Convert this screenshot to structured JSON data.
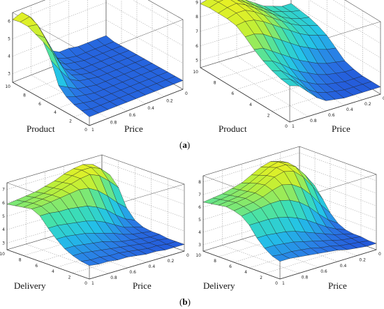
{
  "captions": {
    "a": "a",
    "b": "b"
  },
  "chart_data": [
    {
      "type": "surface",
      "panel": "a-left",
      "xlabel": "Price",
      "ylabel": "Product",
      "x_ticks": [
        "0",
        "0.2",
        "0.4",
        "0.6",
        "0.8",
        "1"
      ],
      "y_ticks": [
        "0",
        "2",
        "4",
        "6",
        "8",
        "10"
      ],
      "z_ticks": [
        "3",
        "4",
        "5",
        "6"
      ],
      "xlim": [
        0,
        1
      ],
      "ylim": [
        0,
        10
      ],
      "zlim": [
        2.5,
        6.5
      ],
      "grid": true,
      "colormap": [
        "#1f3fd0",
        "#2a7ae6",
        "#23c3e8",
        "#3fe0b0",
        "#b9ef3a",
        "#f4f01e"
      ],
      "x": [
        0,
        0.1,
        0.2,
        0.3,
        0.4,
        0.5,
        0.6,
        0.7,
        0.8,
        0.9,
        1
      ],
      "y": [
        0,
        1,
        2,
        3,
        4,
        5,
        6,
        7,
        8,
        9,
        10
      ],
      "z": [
        [
          3.0,
          3.0,
          3.0,
          3.0,
          3.0,
          3.0,
          3.0,
          3.0,
          3.0,
          3.0,
          3.0
        ],
        [
          3.0,
          3.0,
          3.0,
          3.0,
          3.0,
          3.0,
          3.0,
          3.0,
          3.0,
          3.0,
          3.1
        ],
        [
          3.0,
          3.0,
          3.0,
          3.0,
          3.0,
          3.0,
          3.0,
          3.0,
          3.0,
          3.1,
          3.2
        ],
        [
          3.0,
          3.0,
          3.0,
          3.0,
          3.0,
          3.0,
          3.0,
          3.0,
          3.1,
          3.2,
          3.4
        ],
        [
          3.0,
          3.0,
          3.0,
          3.0,
          3.0,
          3.0,
          3.0,
          3.1,
          3.2,
          3.5,
          3.8
        ],
        [
          3.0,
          3.0,
          3.0,
          3.0,
          3.0,
          3.0,
          3.1,
          3.2,
          3.5,
          4.2,
          5.0
        ],
        [
          3.0,
          3.0,
          3.0,
          3.0,
          3.0,
          3.0,
          3.1,
          3.3,
          4.0,
          5.0,
          5.8
        ],
        [
          3.0,
          3.0,
          3.0,
          3.0,
          3.0,
          3.0,
          3.1,
          3.4,
          4.5,
          5.6,
          6.0
        ],
        [
          3.0,
          3.0,
          3.0,
          3.0,
          3.0,
          3.1,
          3.2,
          3.6,
          5.0,
          6.1,
          6.2
        ],
        [
          3.0,
          3.0,
          3.0,
          3.0,
          3.0,
          3.1,
          3.3,
          4.0,
          5.5,
          6.3,
          6.2
        ],
        [
          3.1,
          3.1,
          3.1,
          3.1,
          3.2,
          3.2,
          3.5,
          4.5,
          5.8,
          6.3,
          6.1
        ]
      ]
    },
    {
      "type": "surface",
      "panel": "a-right",
      "xlabel": "Price",
      "ylabel": "Product",
      "x_ticks": [
        "0",
        "0.2",
        "0.4",
        "0.6",
        "0.8",
        "1"
      ],
      "y_ticks": [
        "0",
        "2",
        "4",
        "6",
        "8",
        "10"
      ],
      "z_ticks": [
        "5",
        "6",
        "7",
        "8",
        "9"
      ],
      "xlim": [
        0,
        1
      ],
      "ylim": [
        0,
        10
      ],
      "zlim": [
        4.5,
        9.5
      ],
      "grid": true,
      "colormap": [
        "#1f3fd0",
        "#2a7ae6",
        "#23c3e8",
        "#3fe0b0",
        "#b9ef3a",
        "#f4f01e"
      ],
      "x": [
        0,
        0.1,
        0.2,
        0.3,
        0.4,
        0.5,
        0.6,
        0.7,
        0.8,
        0.9,
        1
      ],
      "y": [
        0,
        1,
        2,
        3,
        4,
        5,
        6,
        7,
        8,
        9,
        10
      ],
      "z": [
        [
          5.0,
          5.0,
          5.0,
          5.0,
          5.0,
          5.1,
          5.2,
          5.6,
          6.2,
          6.8,
          7.0
        ],
        [
          5.0,
          5.0,
          5.0,
          5.0,
          5.1,
          5.2,
          5.4,
          5.8,
          6.4,
          6.9,
          7.1
        ],
        [
          5.0,
          5.0,
          5.0,
          5.1,
          5.2,
          5.4,
          5.7,
          6.1,
          6.6,
          7.1,
          7.3
        ],
        [
          5.1,
          5.1,
          5.2,
          5.3,
          5.5,
          5.8,
          6.1,
          6.5,
          7.0,
          7.4,
          7.6
        ],
        [
          5.3,
          5.4,
          5.5,
          5.7,
          6.0,
          6.3,
          6.7,
          7.1,
          7.5,
          7.9,
          8.0
        ],
        [
          5.8,
          5.9,
          6.1,
          6.4,
          6.7,
          7.1,
          7.5,
          7.9,
          8.3,
          8.5,
          8.5
        ],
        [
          6.3,
          6.5,
          6.7,
          7.0,
          7.4,
          7.8,
          8.2,
          8.6,
          8.9,
          9.0,
          8.9
        ],
        [
          6.6,
          6.8,
          7.0,
          7.3,
          7.7,
          8.1,
          8.5,
          8.9,
          9.2,
          9.2,
          9.0
        ],
        [
          6.8,
          6.9,
          7.1,
          7.4,
          7.8,
          8.2,
          8.6,
          9.0,
          9.3,
          9.2,
          9.0
        ],
        [
          6.9,
          7.0,
          7.2,
          7.4,
          7.8,
          8.2,
          8.6,
          9.0,
          9.3,
          9.2,
          9.0
        ],
        [
          7.0,
          7.0,
          7.2,
          7.4,
          7.8,
          8.2,
          8.6,
          9.0,
          9.2,
          9.1,
          8.9
        ]
      ]
    },
    {
      "type": "surface",
      "panel": "b-left",
      "xlabel": "Price",
      "ylabel": "Delivery",
      "x_ticks": [
        "0",
        "0.2",
        "0.4",
        "0.6",
        "0.8",
        "1"
      ],
      "y_ticks": [
        "0",
        "2",
        "4",
        "6",
        "8",
        "10"
      ],
      "z_ticks": [
        "3",
        "4",
        "5",
        "6",
        "7"
      ],
      "xlim": [
        0,
        1
      ],
      "ylim": [
        0,
        10
      ],
      "zlim": [
        2.5,
        7.5
      ],
      "grid": true,
      "colormap": [
        "#1f3fd0",
        "#2a7ae6",
        "#23c3e8",
        "#3fe0b0",
        "#b9ef3a",
        "#f4f01e"
      ],
      "x": [
        0,
        0.1,
        0.2,
        0.3,
        0.4,
        0.5,
        0.6,
        0.7,
        0.8,
        0.9,
        1
      ],
      "y": [
        0,
        1,
        2,
        3,
        4,
        5,
        6,
        7,
        8,
        9,
        10
      ],
      "z": [
        [
          3.0,
          3.0,
          3.0,
          3.1,
          3.1,
          3.2,
          3.3,
          3.3,
          3.4,
          3.4,
          3.5
        ],
        [
          3.0,
          3.0,
          3.1,
          3.1,
          3.2,
          3.3,
          3.4,
          3.4,
          3.5,
          3.5,
          3.6
        ],
        [
          3.0,
          3.1,
          3.1,
          3.2,
          3.3,
          3.4,
          3.5,
          3.6,
          3.7,
          3.8,
          3.8
        ],
        [
          3.1,
          3.1,
          3.2,
          3.3,
          3.4,
          3.6,
          3.8,
          3.9,
          4.0,
          4.1,
          4.1
        ],
        [
          3.1,
          3.2,
          3.3,
          3.5,
          3.8,
          4.0,
          4.2,
          4.4,
          4.5,
          4.6,
          4.6
        ],
        [
          3.2,
          3.4,
          3.6,
          4.0,
          4.4,
          4.7,
          4.9,
          5.0,
          5.1,
          5.2,
          5.2
        ],
        [
          3.5,
          3.8,
          4.3,
          4.9,
          5.3,
          5.6,
          5.7,
          5.8,
          5.8,
          5.9,
          5.9
        ],
        [
          4.2,
          4.8,
          5.5,
          6.1,
          6.5,
          6.6,
          6.5,
          6.4,
          6.3,
          6.2,
          6.2
        ],
        [
          5.5,
          6.2,
          6.8,
          7.1,
          7.0,
          6.8,
          6.6,
          6.4,
          6.3,
          6.2,
          6.1
        ],
        [
          6.2,
          6.9,
          7.2,
          7.2,
          7.0,
          6.7,
          6.5,
          6.3,
          6.2,
          6.1,
          6.0
        ],
        [
          6.4,
          7.0,
          7.2,
          7.1,
          6.9,
          6.6,
          6.4,
          6.2,
          6.1,
          6.0,
          5.9
        ]
      ]
    },
    {
      "type": "surface",
      "panel": "b-right",
      "xlabel": "Price",
      "ylabel": "Delivery",
      "x_ticks": [
        "0",
        "0.2",
        "0.4",
        "0.6",
        "0.8",
        "1"
      ],
      "y_ticks": [
        "0",
        "2",
        "4",
        "6",
        "8",
        "10"
      ],
      "z_ticks": [
        "3",
        "4",
        "5",
        "6",
        "7",
        "8"
      ],
      "xlim": [
        0,
        1
      ],
      "ylim": [
        0,
        10
      ],
      "zlim": [
        2.5,
        8.5
      ],
      "grid": true,
      "colormap": [
        "#1f3fd0",
        "#2a7ae6",
        "#23c3e8",
        "#3fe0b0",
        "#b9ef3a",
        "#f4f01e"
      ],
      "x": [
        0,
        0.1,
        0.2,
        0.3,
        0.4,
        0.5,
        0.6,
        0.7,
        0.8,
        0.9,
        1
      ],
      "y": [
        0,
        1,
        2,
        3,
        4,
        5,
        6,
        7,
        8,
        9,
        10
      ],
      "z": [
        [
          3.0,
          3.0,
          3.1,
          3.2,
          3.4,
          3.5,
          3.6,
          3.7,
          3.8,
          3.9,
          3.9
        ],
        [
          3.0,
          3.1,
          3.2,
          3.3,
          3.5,
          3.6,
          3.8,
          3.9,
          4.0,
          4.0,
          4.1
        ],
        [
          3.1,
          3.2,
          3.3,
          3.5,
          3.7,
          3.9,
          4.1,
          4.3,
          4.4,
          4.5,
          4.5
        ],
        [
          3.1,
          3.3,
          3.5,
          3.8,
          4.1,
          4.4,
          4.7,
          4.9,
          5.0,
          5.1,
          5.1
        ],
        [
          3.2,
          3.5,
          3.9,
          4.4,
          4.9,
          5.3,
          5.6,
          5.8,
          5.9,
          5.9,
          5.9
        ],
        [
          3.5,
          4.0,
          4.7,
          5.5,
          6.1,
          6.5,
          6.7,
          6.7,
          6.6,
          6.5,
          6.4
        ],
        [
          4.1,
          5.0,
          6.0,
          6.8,
          7.3,
          7.5,
          7.3,
          7.0,
          6.8,
          6.7,
          6.6
        ],
        [
          5.0,
          6.2,
          7.2,
          7.9,
          8.1,
          7.9,
          7.5,
          7.1,
          6.9,
          6.8,
          6.7
        ],
        [
          5.8,
          6.9,
          7.8,
          8.2,
          8.2,
          7.8,
          7.4,
          7.0,
          6.8,
          6.7,
          6.6
        ],
        [
          6.2,
          7.2,
          7.9,
          8.2,
          8.0,
          7.6,
          7.2,
          6.9,
          6.7,
          6.6,
          6.5
        ],
        [
          6.4,
          7.2,
          7.8,
          8.0,
          7.8,
          7.4,
          7.0,
          6.8,
          6.6,
          6.5,
          6.4
        ]
      ]
    }
  ]
}
